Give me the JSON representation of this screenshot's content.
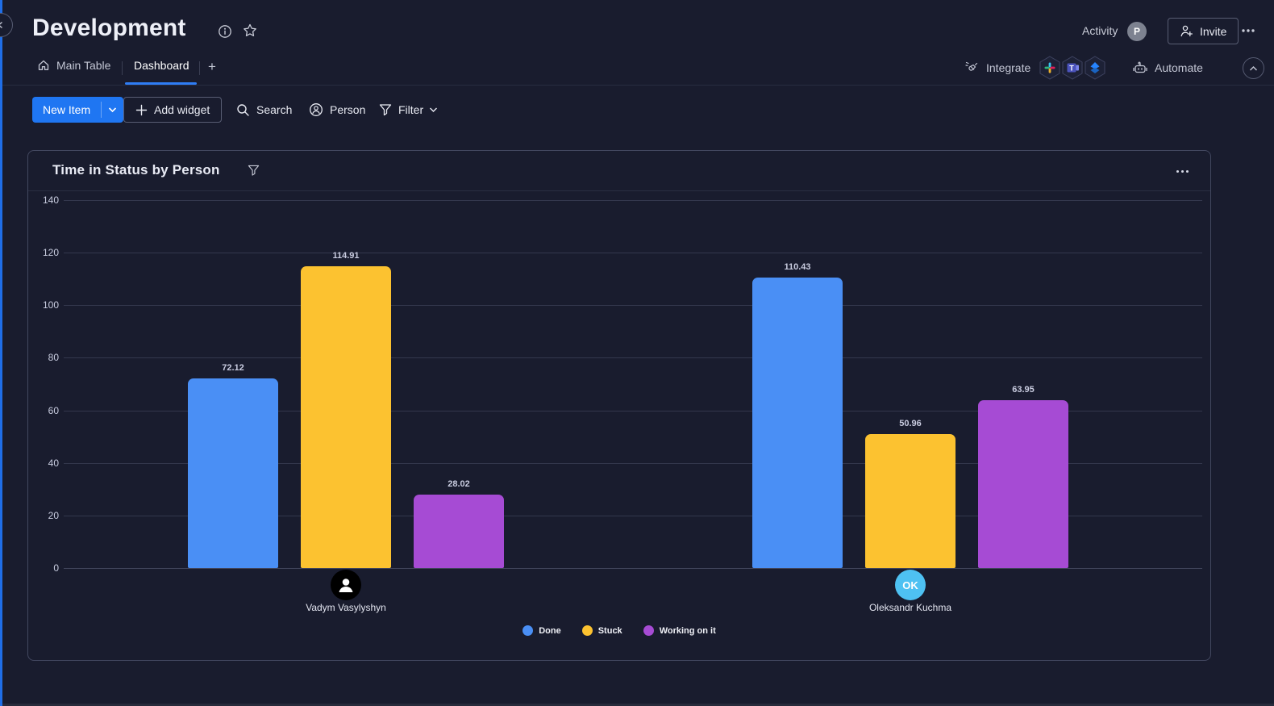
{
  "theme": {
    "bg": "#191c2e",
    "accent_blue": "#1f76f2",
    "panel_border": "#434860",
    "gridline": "#33374d",
    "text_primary": "#eef0f8",
    "text_secondary": "#c3c6d4"
  },
  "header": {
    "title": "Development",
    "activity_label": "Activity",
    "user_initial": "P",
    "invite_label": "Invite"
  },
  "tabs": {
    "main_table": "Main Table",
    "dashboard": "Dashboard",
    "add_tab": "+",
    "integrate_label": "Integrate",
    "automate_label": "Automate",
    "integration_icons": [
      "slack",
      "microsoft-teams",
      "jira"
    ]
  },
  "toolbar": {
    "new_item": "New Item",
    "add_widget": "Add widget",
    "search": "Search",
    "person": "Person",
    "filter": "Filter"
  },
  "chart_data": {
    "type": "bar",
    "title": "Time in Status by Person",
    "categories": [
      "Vadym Vasylyshyn",
      "Oleksandr Kuchma"
    ],
    "series": [
      {
        "name": "Done",
        "color": "#4a8ff5",
        "values": [
          72.12,
          110.43
        ]
      },
      {
        "name": "Stuck",
        "color": "#fcc230",
        "values": [
          114.91,
          50.96
        ]
      },
      {
        "name": "Working on it",
        "color": "#a64bd4",
        "values": [
          28.02,
          63.95
        ]
      }
    ],
    "avatars": [
      {
        "kind": "person-silhouette",
        "bg": "#000000",
        "fg": "#ffffff"
      },
      {
        "kind": "initials",
        "text": "OK",
        "bg": "#4ec1f2",
        "fg": "#ffffff"
      }
    ],
    "ylim": [
      0,
      140
    ],
    "yticks": [
      0,
      20,
      40,
      60,
      80,
      100,
      120,
      140
    ],
    "grid": true,
    "legend_position": "bottom",
    "value_labels": true
  }
}
